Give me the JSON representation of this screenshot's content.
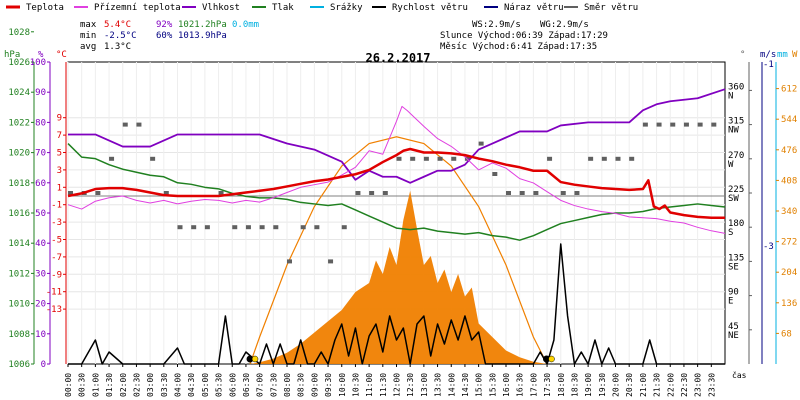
{
  "chart_data": {
    "type": "line",
    "title": "26.2.2017",
    "xlabel": "čas",
    "legend": [
      {
        "label": "Teplota",
        "color": "#e00000"
      },
      {
        "label": "Přízemní teplota",
        "color": "#e040e0"
      },
      {
        "label": "Vlhkost",
        "color": "#8000c0"
      },
      {
        "label": "Tlak",
        "color": "#208020"
      },
      {
        "label": "Srážky",
        "color": "#00b0e0"
      },
      {
        "label": "Rychlost větru",
        "color": "#000000"
      },
      {
        "label": "Náraz větru",
        "color": "#000080"
      },
      {
        "label": "Směr větru",
        "color": "#606060"
      }
    ],
    "summary": {
      "max_label": "max",
      "max_temp": "5.4°C",
      "max_hum": "92%",
      "max_press": "1021.2hPa",
      "rain": "0.0mm",
      "min_label": "min",
      "min_temp": "-2.5°C",
      "min_hum": "60%",
      "min_press": "1013.9hPa",
      "avg_label": "avg",
      "avg_temp": "1.3°C",
      "ws": "WS:2.9m/s",
      "wg": "WG:2.9m/s",
      "sun": "Slunce Východ:06:39  Západ:17:29",
      "moon": "Měsíc  Východ:6:41   Západ:17:35"
    },
    "axes": {
      "hpa_unit": "hPa",
      "pct_unit": "%",
      "degc_unit": "°C",
      "deg_unit": "°",
      "ms_unit": "m/s",
      "mm_unit": "mm",
      "wm2_unit": "W",
      "hpa_ticks": [
        "1028",
        "1026",
        "1024",
        "1022",
        "1020",
        "1018",
        "1016",
        "1014",
        "1012",
        "1010",
        "1008",
        "1006"
      ],
      "pct_ticks": [
        "100",
        "90",
        "80",
        "70",
        "60",
        "50",
        "40",
        "30",
        "20",
        "10",
        "0"
      ],
      "temp_ticks": [
        "9",
        "7",
        "5",
        "3",
        "1",
        "-1",
        "-3",
        "-5",
        "-7",
        "-9",
        "-11",
        "-13"
      ],
      "deg_ticks": [
        "360",
        "315",
        "270",
        "225",
        "180",
        "135",
        "90",
        "45"
      ],
      "deg_dirs": [
        "N",
        "NW",
        "W",
        "SW",
        "S",
        "SE",
        "E",
        "NE"
      ],
      "ms_ticks": [
        "-1",
        "-3"
      ],
      "wm2_ticks": [
        "612",
        "544",
        "476",
        "408",
        "340",
        "272",
        "204",
        "136",
        "68"
      ],
      "x_ticks": [
        "00:00",
        "00:30",
        "01:00",
        "01:30",
        "02:00",
        "02:30",
        "03:00",
        "03:30",
        "04:00",
        "04:30",
        "05:00",
        "05:30",
        "06:00",
        "06:30",
        "07:00",
        "07:30",
        "08:00",
        "08:30",
        "09:00",
        "09:30",
        "10:00",
        "10:30",
        "11:00",
        "11:30",
        "12:00",
        "12:30",
        "13:00",
        "13:30",
        "14:00",
        "14:30",
        "15:00",
        "15:30",
        "16:00",
        "16:30",
        "17:00",
        "17:30",
        "18:00",
        "18:30",
        "19:00",
        "19:30",
        "20:00",
        "20:30",
        "21:00",
        "21:30",
        "22:00",
        "22:30",
        "23:00",
        "23:30"
      ],
      "xlim_hours": [
        0,
        24
      ]
    },
    "series": {
      "temperature_c": {
        "x": [
          0,
          0.5,
          1,
          1.5,
          2,
          2.5,
          3,
          3.5,
          4,
          4.5,
          5,
          5.5,
          6,
          6.5,
          7,
          7.5,
          8,
          8.5,
          9,
          9.5,
          10,
          10.5,
          11,
          11.5,
          12,
          12.25,
          12.5,
          12.75,
          13,
          13.5,
          14,
          14.5,
          15,
          15.5,
          16,
          16.5,
          17,
          17.5,
          18,
          18.5,
          19,
          19.5,
          20,
          20.5,
          21,
          21.2,
          21.4,
          21.6,
          21.8,
          22,
          22.5,
          23,
          23.5,
          24
        ],
        "y": [
          0,
          0.3,
          0.8,
          0.9,
          0.9,
          0.7,
          0.4,
          0.1,
          0,
          0,
          0,
          0,
          0.2,
          0.4,
          0.6,
          0.8,
          1.1,
          1.4,
          1.7,
          1.9,
          2.2,
          2.5,
          3,
          3.9,
          4.7,
          5.2,
          5.4,
          5.2,
          5.0,
          5.0,
          4.9,
          4.7,
          4.3,
          4.0,
          3.6,
          3.3,
          2.9,
          2.9,
          1.6,
          1.3,
          1.1,
          0.9,
          0.8,
          0.7,
          0.8,
          1.8,
          -1.2,
          -1.5,
          -1.1,
          -1.9,
          -2.2,
          -2.4,
          -2.5,
          -2.5
        ]
      },
      "ground_temp_c": {
        "x": [
          0,
          0.5,
          1,
          1.5,
          2,
          2.5,
          3,
          3.5,
          4,
          4.5,
          5,
          5.5,
          6,
          6.5,
          7,
          7.5,
          8,
          8.5,
          9,
          9.5,
          10,
          10.5,
          11,
          11.5,
          12,
          12.2,
          12.4,
          12.6,
          13,
          13.5,
          14,
          14.5,
          15,
          15.5,
          16,
          16.5,
          17,
          17.5,
          18,
          18.5,
          19,
          19.5,
          20,
          20.5,
          21,
          21.5,
          22,
          22.5,
          23,
          23.5,
          24
        ],
        "y": [
          -1,
          -1.5,
          -0.6,
          -0.2,
          0,
          -0.5,
          -0.8,
          -0.5,
          -0.9,
          -0.6,
          -0.4,
          -0.5,
          -0.8,
          -0.5,
          -0.7,
          -0.2,
          0.4,
          1.0,
          1.3,
          1.6,
          2.4,
          3.3,
          5.2,
          4.8,
          8.6,
          10.3,
          9.8,
          9.2,
          8.0,
          6.6,
          5.7,
          4.5,
          3.0,
          3.8,
          3.2,
          2.0,
          1.5,
          0.5,
          -0.5,
          -1.1,
          -1.5,
          -1.8,
          -2.0,
          -2.4,
          -2.5,
          -2.6,
          -2.9,
          -3.1,
          -3.6,
          -4.0,
          -4.3
        ]
      },
      "humidity_pct": {
        "x": [
          0,
          1,
          2,
          3,
          4,
          5,
          6,
          7,
          8,
          9,
          10,
          10.5,
          11,
          11.5,
          12,
          12.5,
          13,
          13.5,
          14,
          14.5,
          15,
          15.5,
          16,
          16.5,
          17,
          17.5,
          18,
          19,
          20,
          20.5,
          21,
          21.5,
          22,
          23,
          24
        ],
        "y": [
          76,
          76,
          72,
          72,
          76,
          76,
          76,
          76,
          73,
          71,
          67,
          61,
          64,
          62,
          62,
          60,
          62,
          64,
          64,
          66,
          71,
          73,
          75,
          77,
          77,
          77,
          79,
          80,
          80,
          80,
          84,
          86,
          87,
          88,
          91
        ]
      },
      "pressure_hpa": {
        "x": [
          0,
          0.5,
          1,
          1.5,
          2,
          2.5,
          3,
          3.5,
          4,
          4.5,
          5,
          5.5,
          6,
          6.5,
          7,
          7.5,
          8,
          8.5,
          9,
          9.5,
          10,
          10.5,
          11,
          11.5,
          12,
          12.5,
          13,
          13.5,
          14,
          14.5,
          15,
          15.5,
          16,
          16.5,
          17,
          17.5,
          18,
          18.5,
          19,
          19.5,
          20,
          20.5,
          21,
          21.5,
          22,
          22.5,
          23,
          23.5,
          24
        ],
        "y": [
          1020.6,
          1019.7,
          1019.6,
          1019.2,
          1018.9,
          1018.7,
          1018.5,
          1018.4,
          1018.0,
          1017.9,
          1017.7,
          1017.6,
          1017.3,
          1017.1,
          1017.0,
          1017.0,
          1016.9,
          1016.7,
          1016.6,
          1016.5,
          1016.6,
          1016.2,
          1015.8,
          1015.4,
          1015.0,
          1014.9,
          1015.0,
          1014.8,
          1014.7,
          1014.6,
          1014.7,
          1014.5,
          1014.4,
          1014.2,
          1014.5,
          1014.9,
          1015.3,
          1015.5,
          1015.7,
          1015.9,
          1016.0,
          1016.0,
          1016.1,
          1016.3,
          1016.4,
          1016.5,
          1016.6,
          1016.5,
          1016.4
        ]
      },
      "wind_speed_ms": {
        "x": [
          0,
          0.5,
          0.75,
          1,
          1.25,
          1.5,
          2,
          2.5,
          3,
          3.5,
          4,
          4.25,
          4.5,
          4.75,
          5,
          5.5,
          5.75,
          6,
          6.25,
          6.5,
          7,
          7.25,
          7.5,
          7.75,
          8,
          8.25,
          8.5,
          8.75,
          9,
          9.25,
          9.5,
          9.75,
          10,
          10.25,
          10.5,
          10.75,
          11,
          11.25,
          11.5,
          11.75,
          12,
          12.25,
          12.5,
          12.75,
          13,
          13.25,
          13.5,
          13.75,
          14,
          14.25,
          14.5,
          14.75,
          15,
          15.25,
          15.5,
          16,
          16.5,
          17,
          17.25,
          17.5,
          17.75,
          18,
          18.25,
          18.5,
          18.75,
          19,
          19.25,
          19.5,
          19.75,
          20,
          20.25,
          20.5,
          20.75,
          21,
          21.25,
          21.5,
          22,
          22.5,
          23,
          23.5,
          24
        ],
        "y": [
          0,
          0,
          0.3,
          0.6,
          0,
          0.3,
          0,
          0,
          0,
          0,
          0.4,
          0,
          0,
          0,
          0,
          0,
          1.2,
          0,
          0,
          0.3,
          0,
          0.5,
          0,
          0.5,
          0,
          0,
          0.6,
          0,
          0,
          0.3,
          0,
          0.6,
          1.0,
          0.2,
          0.9,
          0,
          0.7,
          1.0,
          0.3,
          1.2,
          0.6,
          0.9,
          0,
          1.0,
          1.2,
          0.2,
          1.0,
          0.5,
          1.1,
          0.6,
          1.2,
          0.6,
          0.8,
          0,
          0,
          0,
          0,
          0,
          0.3,
          0,
          0.6,
          3.0,
          1.2,
          0,
          0.3,
          0,
          0.6,
          0,
          0.4,
          0,
          0,
          0,
          0,
          0,
          0.6,
          0,
          0,
          0,
          0,
          0,
          0
        ]
      },
      "wind_dir_deg": {
        "x": [
          0,
          0.5,
          1,
          1.5,
          2,
          2.5,
          3,
          3.5,
          4,
          4.5,
          5,
          5.5,
          6,
          6.5,
          7,
          7.5,
          8,
          8.5,
          9,
          9.5,
          10,
          10.5,
          11,
          11.5,
          12,
          12.5,
          13,
          13.5,
          14,
          14.5,
          15,
          15.5,
          16,
          16.5,
          17,
          17.5,
          18,
          18.5,
          19,
          19.5,
          20,
          20.5,
          21,
          21.5,
          22,
          22.5,
          23,
          23.5
        ],
        "y": [
          225,
          225,
          225,
          270,
          315,
          315,
          270,
          225,
          180,
          180,
          180,
          225,
          180,
          180,
          180,
          180,
          135,
          180,
          180,
          135,
          180,
          225,
          225,
          225,
          270,
          270,
          270,
          270,
          270,
          270,
          290,
          250,
          225,
          225,
          225,
          270,
          225,
          225,
          270,
          270,
          270,
          270,
          315,
          315,
          315,
          315,
          315,
          315
        ]
      },
      "solar_wm2": {
        "x": [
          6.65,
          7,
          7.5,
          8,
          8.5,
          9,
          9.5,
          10,
          10.5,
          11,
          11.25,
          11.5,
          11.75,
          12,
          12.25,
          12.5,
          12.75,
          13,
          13.25,
          13.5,
          13.75,
          14,
          14.25,
          14.5,
          14.75,
          15,
          15.5,
          16,
          16.5,
          17,
          17.5
        ],
        "y": [
          0,
          4,
          12,
          25,
          45,
          70,
          95,
          120,
          160,
          180,
          230,
          200,
          260,
          220,
          320,
          385,
          300,
          220,
          240,
          180,
          210,
          160,
          200,
          150,
          170,
          90,
          60,
          30,
          15,
          5,
          0
        ]
      },
      "solar_theoretical_wm2": {
        "x": [
          6.65,
          7,
          8,
          9,
          10,
          11,
          12,
          13,
          14,
          15,
          16,
          17,
          17.5
        ],
        "y": [
          0,
          60,
          220,
          350,
          440,
          490,
          505,
          490,
          440,
          350,
          220,
          60,
          0
        ]
      },
      "sun_marks": [
        6.65,
        17.48
      ]
    }
  }
}
